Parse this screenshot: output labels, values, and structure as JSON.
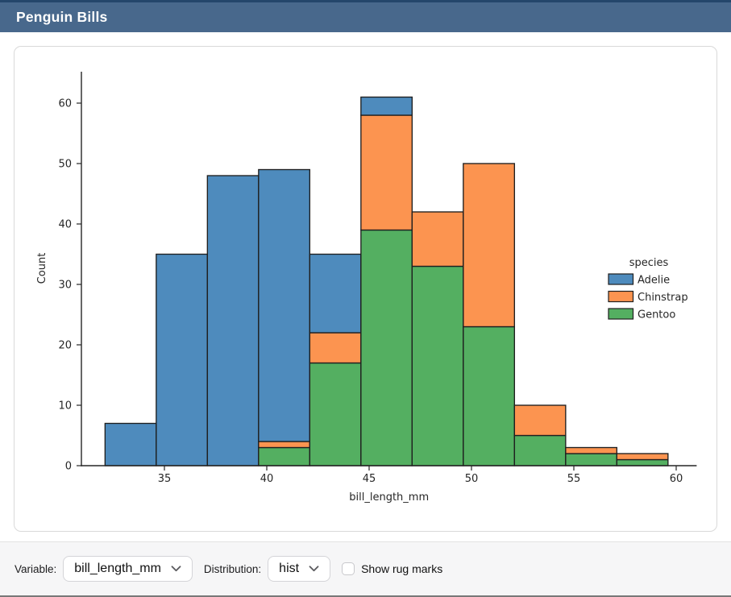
{
  "header": {
    "title": "Penguin Bills"
  },
  "controls": {
    "variable_label": "Variable:",
    "variable_value": "bill_length_mm",
    "distribution_label": "Distribution:",
    "distribution_value": "hist",
    "rug_label": "Show rug marks",
    "rug_checked": false,
    "chevron_icon": "chevron-down"
  },
  "colors": {
    "header_bg": "#48688C",
    "header_top_border": "#24466B",
    "footer_bg": "#F6F6F7",
    "adelie_blue": "#4E8BBD",
    "chinstrap_orange": "#FC9450",
    "gentoo_green": "#54AF61",
    "bar_edge": "#1F1F1F",
    "axis": "#262626"
  },
  "chart_data": {
    "type": "bar",
    "subtype": "stacked-histogram",
    "title": "",
    "xlabel": "bill_length_mm",
    "ylabel": "Count",
    "bin_edges": [
      32.1,
      34.6,
      37.1,
      39.6,
      42.1,
      44.6,
      47.1,
      49.6,
      52.1,
      54.6,
      57.1,
      59.6
    ],
    "series": [
      {
        "name": "Adelie",
        "color": "#4E8BBD",
        "values": [
          7,
          35,
          48,
          45,
          13,
          3,
          0,
          0,
          0,
          0,
          0
        ]
      },
      {
        "name": "Chinstrap",
        "color": "#FC9450",
        "values": [
          0,
          0,
          0,
          1,
          5,
          19,
          9,
          27,
          5,
          1,
          1
        ]
      },
      {
        "name": "Gentoo",
        "color": "#54AF61",
        "values": [
          0,
          0,
          0,
          3,
          17,
          39,
          33,
          23,
          5,
          2,
          1
        ]
      }
    ],
    "stack_totals": [
      7,
      35,
      48,
      49,
      35,
      61,
      42,
      50,
      10,
      3,
      2
    ],
    "stack_order_bottom_to_top": [
      "Gentoo",
      "Chinstrap",
      "Adelie"
    ],
    "x_ticks": [
      35,
      40,
      45,
      50,
      55,
      60
    ],
    "y_ticks": [
      0,
      10,
      20,
      30,
      40,
      50,
      60
    ],
    "xlim": [
      30.7,
      61.0
    ],
    "ylim": [
      0,
      65.3
    ],
    "grid": false,
    "legend": {
      "title": "species",
      "entries": [
        "Adelie",
        "Chinstrap",
        "Gentoo"
      ],
      "position": "center-right"
    }
  }
}
